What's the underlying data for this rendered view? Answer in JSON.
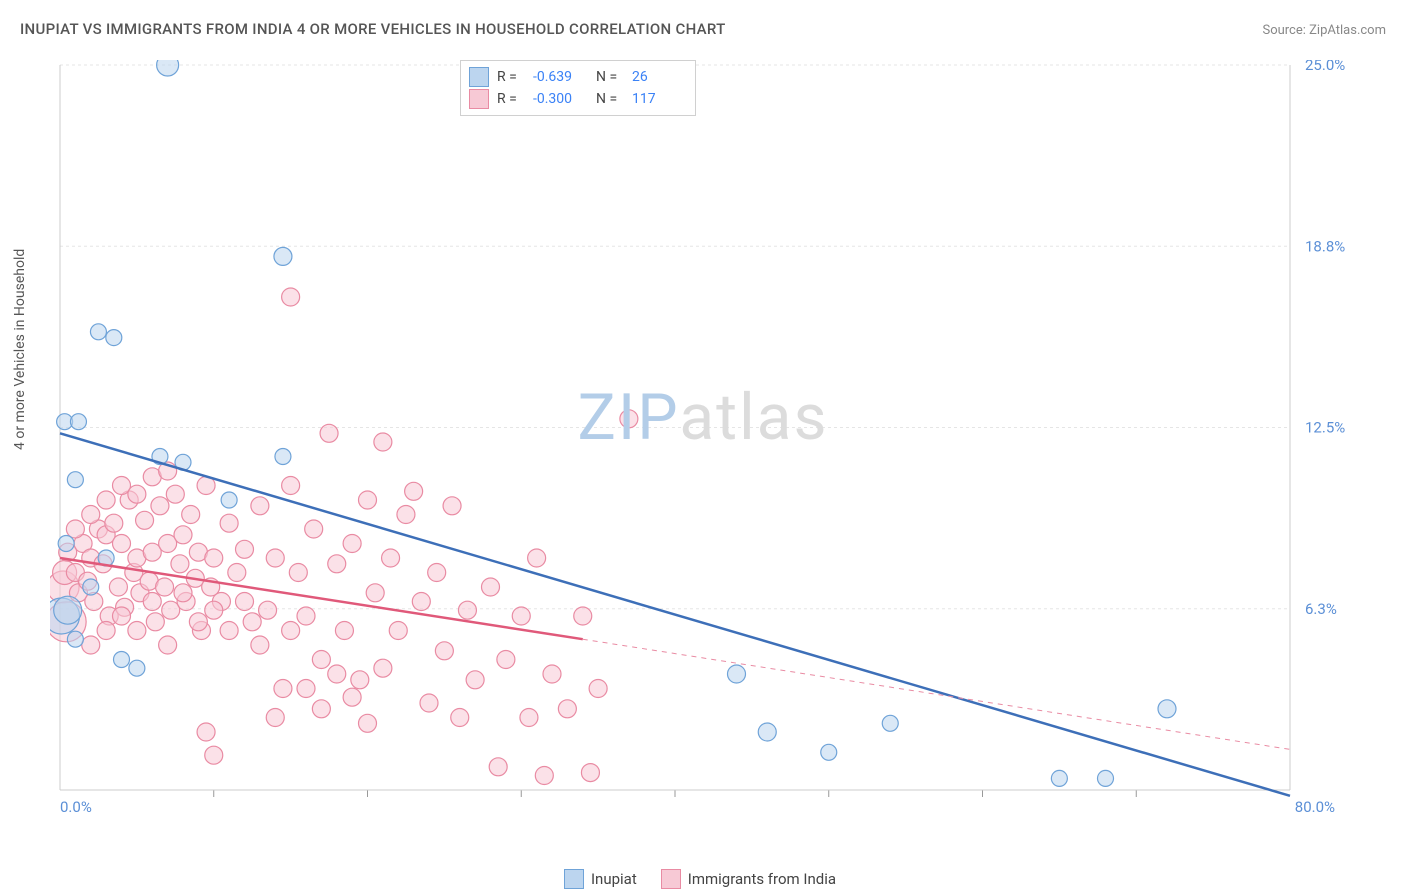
{
  "title": "INUPIAT VS IMMIGRANTS FROM INDIA 4 OR MORE VEHICLES IN HOUSEHOLD CORRELATION CHART",
  "source_prefix": "Source: ",
  "source": "ZipAtlas.com",
  "ylabel": "4 or more Vehicles in Household",
  "watermark_a": "ZIP",
  "watermark_b": "atlas",
  "chart": {
    "type": "scatter",
    "background_color": "#ffffff",
    "grid_color": "#e5e5e5",
    "border_color": "#cccccc",
    "xlim": [
      0,
      80
    ],
    "ylim": [
      0,
      25
    ],
    "xtick_step": 10,
    "ytick_step": 6.25,
    "ytick_labels": [
      "6.3%",
      "12.5%",
      "18.8%",
      "25.0%"
    ],
    "ytick_color": "#5b8fd6",
    "xlabel_start": "0.0%",
    "xlabel_end": "80.0%",
    "xlabel_color": "#5b8fd6",
    "series": [
      {
        "name": "Inupiat",
        "color_fill": "#bcd5ef",
        "color_stroke": "#6fa3d8",
        "marker_radius": 9,
        "fill_opacity": 0.55,
        "R": "-0.639",
        "N": "26",
        "line": {
          "x1": 0,
          "y1": 12.3,
          "x2": 80,
          "y2": -0.2,
          "color": "#3d6fb8",
          "width": 2.5
        },
        "points": [
          {
            "x": 0.1,
            "y": 6.0,
            "r": 18
          },
          {
            "x": 0.5,
            "y": 6.2,
            "r": 14
          },
          {
            "x": 0.3,
            "y": 12.7,
            "r": 8
          },
          {
            "x": 1.2,
            "y": 12.7,
            "r": 8
          },
          {
            "x": 2.5,
            "y": 15.8,
            "r": 8
          },
          {
            "x": 3.5,
            "y": 15.6,
            "r": 8
          },
          {
            "x": 7.0,
            "y": 25.0,
            "r": 11
          },
          {
            "x": 1.0,
            "y": 10.7,
            "r": 8
          },
          {
            "x": 0.4,
            "y": 8.5,
            "r": 8
          },
          {
            "x": 3.0,
            "y": 8.0,
            "r": 8
          },
          {
            "x": 4.0,
            "y": 4.5,
            "r": 8
          },
          {
            "x": 5.0,
            "y": 4.2,
            "r": 8
          },
          {
            "x": 6.5,
            "y": 11.5,
            "r": 8
          },
          {
            "x": 8.0,
            "y": 11.3,
            "r": 8
          },
          {
            "x": 11.0,
            "y": 10.0,
            "r": 8
          },
          {
            "x": 14.5,
            "y": 18.4,
            "r": 9
          },
          {
            "x": 14.5,
            "y": 11.5,
            "r": 8
          },
          {
            "x": 44.0,
            "y": 4.0,
            "r": 9
          },
          {
            "x": 46.0,
            "y": 2.0,
            "r": 9
          },
          {
            "x": 50.0,
            "y": 1.3,
            "r": 8
          },
          {
            "x": 54.0,
            "y": 2.3,
            "r": 8
          },
          {
            "x": 65.0,
            "y": 0.4,
            "r": 8
          },
          {
            "x": 68.0,
            "y": 0.4,
            "r": 8
          },
          {
            "x": 72.0,
            "y": 2.8,
            "r": 9
          },
          {
            "x": 1.0,
            "y": 5.2,
            "r": 8
          },
          {
            "x": 2.0,
            "y": 7.0,
            "r": 8
          }
        ]
      },
      {
        "name": "Immigrants from India",
        "color_fill": "#f7c9d5",
        "color_stroke": "#e98ba3",
        "marker_radius": 9,
        "fill_opacity": 0.55,
        "R": "-0.300",
        "N": "117",
        "line": {
          "x1": 0,
          "y1": 8.0,
          "x2": 34,
          "y2": 5.2,
          "color": "#e0597a",
          "width": 2.5
        },
        "line_dashed": {
          "x1": 34,
          "y1": 5.2,
          "x2": 80,
          "y2": 1.4,
          "color": "#e98ba3",
          "width": 1
        },
        "points": [
          {
            "x": 0.2,
            "y": 7.0,
            "r": 16
          },
          {
            "x": 0.3,
            "y": 7.5,
            "r": 12
          },
          {
            "x": 0.4,
            "y": 5.8,
            "r": 20
          },
          {
            "x": 0.5,
            "y": 8.2,
            "r": 9
          },
          {
            "x": 1.0,
            "y": 7.5,
            "r": 9
          },
          {
            "x": 1.2,
            "y": 6.8,
            "r": 9
          },
          {
            "x": 1.5,
            "y": 8.5,
            "r": 9
          },
          {
            "x": 1.8,
            "y": 7.2,
            "r": 9
          },
          {
            "x": 2.0,
            "y": 8.0,
            "r": 9
          },
          {
            "x": 2.2,
            "y": 6.5,
            "r": 9
          },
          {
            "x": 2.5,
            "y": 9.0,
            "r": 9
          },
          {
            "x": 2.8,
            "y": 7.8,
            "r": 9
          },
          {
            "x": 3.0,
            "y": 8.8,
            "r": 9
          },
          {
            "x": 3.2,
            "y": 6.0,
            "r": 9
          },
          {
            "x": 3.5,
            "y": 9.2,
            "r": 9
          },
          {
            "x": 3.8,
            "y": 7.0,
            "r": 9
          },
          {
            "x": 4.0,
            "y": 8.5,
            "r": 9
          },
          {
            "x": 4.2,
            "y": 6.3,
            "r": 9
          },
          {
            "x": 4.5,
            "y": 10.0,
            "r": 9
          },
          {
            "x": 4.8,
            "y": 7.5,
            "r": 9
          },
          {
            "x": 5.0,
            "y": 8.0,
            "r": 9
          },
          {
            "x": 5.2,
            "y": 6.8,
            "r": 9
          },
          {
            "x": 5.5,
            "y": 9.3,
            "r": 9
          },
          {
            "x": 5.8,
            "y": 7.2,
            "r": 9
          },
          {
            "x": 6.0,
            "y": 8.2,
            "r": 9
          },
          {
            "x": 6.2,
            "y": 5.8,
            "r": 9
          },
          {
            "x": 6.5,
            "y": 9.8,
            "r": 9
          },
          {
            "x": 6.8,
            "y": 7.0,
            "r": 9
          },
          {
            "x": 7.0,
            "y": 8.5,
            "r": 9
          },
          {
            "x": 7.2,
            "y": 6.2,
            "r": 9
          },
          {
            "x": 7.5,
            "y": 10.2,
            "r": 9
          },
          {
            "x": 7.8,
            "y": 7.8,
            "r": 9
          },
          {
            "x": 8.0,
            "y": 8.8,
            "r": 9
          },
          {
            "x": 8.2,
            "y": 6.5,
            "r": 9
          },
          {
            "x": 8.5,
            "y": 9.5,
            "r": 9
          },
          {
            "x": 8.8,
            "y": 7.3,
            "r": 9
          },
          {
            "x": 9.0,
            "y": 8.2,
            "r": 9
          },
          {
            "x": 9.2,
            "y": 5.5,
            "r": 9
          },
          {
            "x": 9.5,
            "y": 10.5,
            "r": 9
          },
          {
            "x": 9.8,
            "y": 7.0,
            "r": 9
          },
          {
            "x": 10.0,
            "y": 8.0,
            "r": 9
          },
          {
            "x": 10.5,
            "y": 6.5,
            "r": 9
          },
          {
            "x": 11.0,
            "y": 9.2,
            "r": 9
          },
          {
            "x": 11.5,
            "y": 7.5,
            "r": 9
          },
          {
            "x": 12.0,
            "y": 8.3,
            "r": 9
          },
          {
            "x": 12.5,
            "y": 5.8,
            "r": 9
          },
          {
            "x": 13.0,
            "y": 9.8,
            "r": 9
          },
          {
            "x": 13.5,
            "y": 6.2,
            "r": 9
          },
          {
            "x": 14.0,
            "y": 8.0,
            "r": 9
          },
          {
            "x": 14.5,
            "y": 3.5,
            "r": 9
          },
          {
            "x": 15.0,
            "y": 10.5,
            "r": 9
          },
          {
            "x": 15.0,
            "y": 17.0,
            "r": 9
          },
          {
            "x": 15.5,
            "y": 7.5,
            "r": 9
          },
          {
            "x": 16.0,
            "y": 6.0,
            "r": 9
          },
          {
            "x": 16.5,
            "y": 9.0,
            "r": 9
          },
          {
            "x": 17.0,
            "y": 4.5,
            "r": 9
          },
          {
            "x": 17.5,
            "y": 12.3,
            "r": 9
          },
          {
            "x": 18.0,
            "y": 7.8,
            "r": 9
          },
          {
            "x": 18.5,
            "y": 5.5,
            "r": 9
          },
          {
            "x": 19.0,
            "y": 8.5,
            "r": 9
          },
          {
            "x": 19.5,
            "y": 3.8,
            "r": 9
          },
          {
            "x": 20.0,
            "y": 10.0,
            "r": 9
          },
          {
            "x": 20.5,
            "y": 6.8,
            "r": 9
          },
          {
            "x": 21.0,
            "y": 4.2,
            "r": 9
          },
          {
            "x": 21.0,
            "y": 12.0,
            "r": 9
          },
          {
            "x": 21.5,
            "y": 8.0,
            "r": 9
          },
          {
            "x": 22.0,
            "y": 5.5,
            "r": 9
          },
          {
            "x": 22.5,
            "y": 9.5,
            "r": 9
          },
          {
            "x": 23.0,
            "y": 10.3,
            "r": 9
          },
          {
            "x": 23.5,
            "y": 6.5,
            "r": 9
          },
          {
            "x": 24.0,
            "y": 3.0,
            "r": 9
          },
          {
            "x": 24.5,
            "y": 7.5,
            "r": 9
          },
          {
            "x": 25.0,
            "y": 4.8,
            "r": 9
          },
          {
            "x": 25.5,
            "y": 9.8,
            "r": 9
          },
          {
            "x": 26.0,
            "y": 2.5,
            "r": 9
          },
          {
            "x": 26.5,
            "y": 6.2,
            "r": 9
          },
          {
            "x": 27.0,
            "y": 3.8,
            "r": 9
          },
          {
            "x": 28.0,
            "y": 7.0,
            "r": 9
          },
          {
            "x": 28.5,
            "y": 0.8,
            "r": 9
          },
          {
            "x": 29.0,
            "y": 4.5,
            "r": 9
          },
          {
            "x": 30.0,
            "y": 6.0,
            "r": 9
          },
          {
            "x": 30.5,
            "y": 2.5,
            "r": 9
          },
          {
            "x": 31.0,
            "y": 8.0,
            "r": 9
          },
          {
            "x": 31.5,
            "y": 0.5,
            "r": 9
          },
          {
            "x": 32.0,
            "y": 4.0,
            "r": 9
          },
          {
            "x": 33.0,
            "y": 2.8,
            "r": 9
          },
          {
            "x": 34.0,
            "y": 6.0,
            "r": 9
          },
          {
            "x": 34.5,
            "y": 0.6,
            "r": 9
          },
          {
            "x": 35.0,
            "y": 3.5,
            "r": 9
          },
          {
            "x": 37.0,
            "y": 12.8,
            "r": 9
          },
          {
            "x": 9.5,
            "y": 2.0,
            "r": 9
          },
          {
            "x": 10.0,
            "y": 1.2,
            "r": 9
          },
          {
            "x": 13.0,
            "y": 5.0,
            "r": 9
          },
          {
            "x": 14.0,
            "y": 2.5,
            "r": 9
          },
          {
            "x": 15.0,
            "y": 5.5,
            "r": 9
          },
          {
            "x": 16.0,
            "y": 3.5,
            "r": 9
          },
          {
            "x": 17.0,
            "y": 2.8,
            "r": 9
          },
          {
            "x": 18.0,
            "y": 4.0,
            "r": 9
          },
          {
            "x": 19.0,
            "y": 3.2,
            "r": 9
          },
          {
            "x": 20.0,
            "y": 2.3,
            "r": 9
          },
          {
            "x": 2.0,
            "y": 5.0,
            "r": 9
          },
          {
            "x": 3.0,
            "y": 5.5,
            "r": 9
          },
          {
            "x": 4.0,
            "y": 6.0,
            "r": 9
          },
          {
            "x": 5.0,
            "y": 5.5,
            "r": 9
          },
          {
            "x": 6.0,
            "y": 6.5,
            "r": 9
          },
          {
            "x": 7.0,
            "y": 5.0,
            "r": 9
          },
          {
            "x": 8.0,
            "y": 6.8,
            "r": 9
          },
          {
            "x": 9.0,
            "y": 5.8,
            "r": 9
          },
          {
            "x": 10.0,
            "y": 6.2,
            "r": 9
          },
          {
            "x": 11.0,
            "y": 5.5,
            "r": 9
          },
          {
            "x": 12.0,
            "y": 6.5,
            "r": 9
          },
          {
            "x": 1.0,
            "y": 9.0,
            "r": 9
          },
          {
            "x": 2.0,
            "y": 9.5,
            "r": 9
          },
          {
            "x": 3.0,
            "y": 10.0,
            "r": 9
          },
          {
            "x": 4.0,
            "y": 10.5,
            "r": 9
          },
          {
            "x": 5.0,
            "y": 10.2,
            "r": 9
          },
          {
            "x": 6.0,
            "y": 10.8,
            "r": 9
          },
          {
            "x": 7.0,
            "y": 11.0,
            "r": 9
          }
        ]
      }
    ]
  }
}
